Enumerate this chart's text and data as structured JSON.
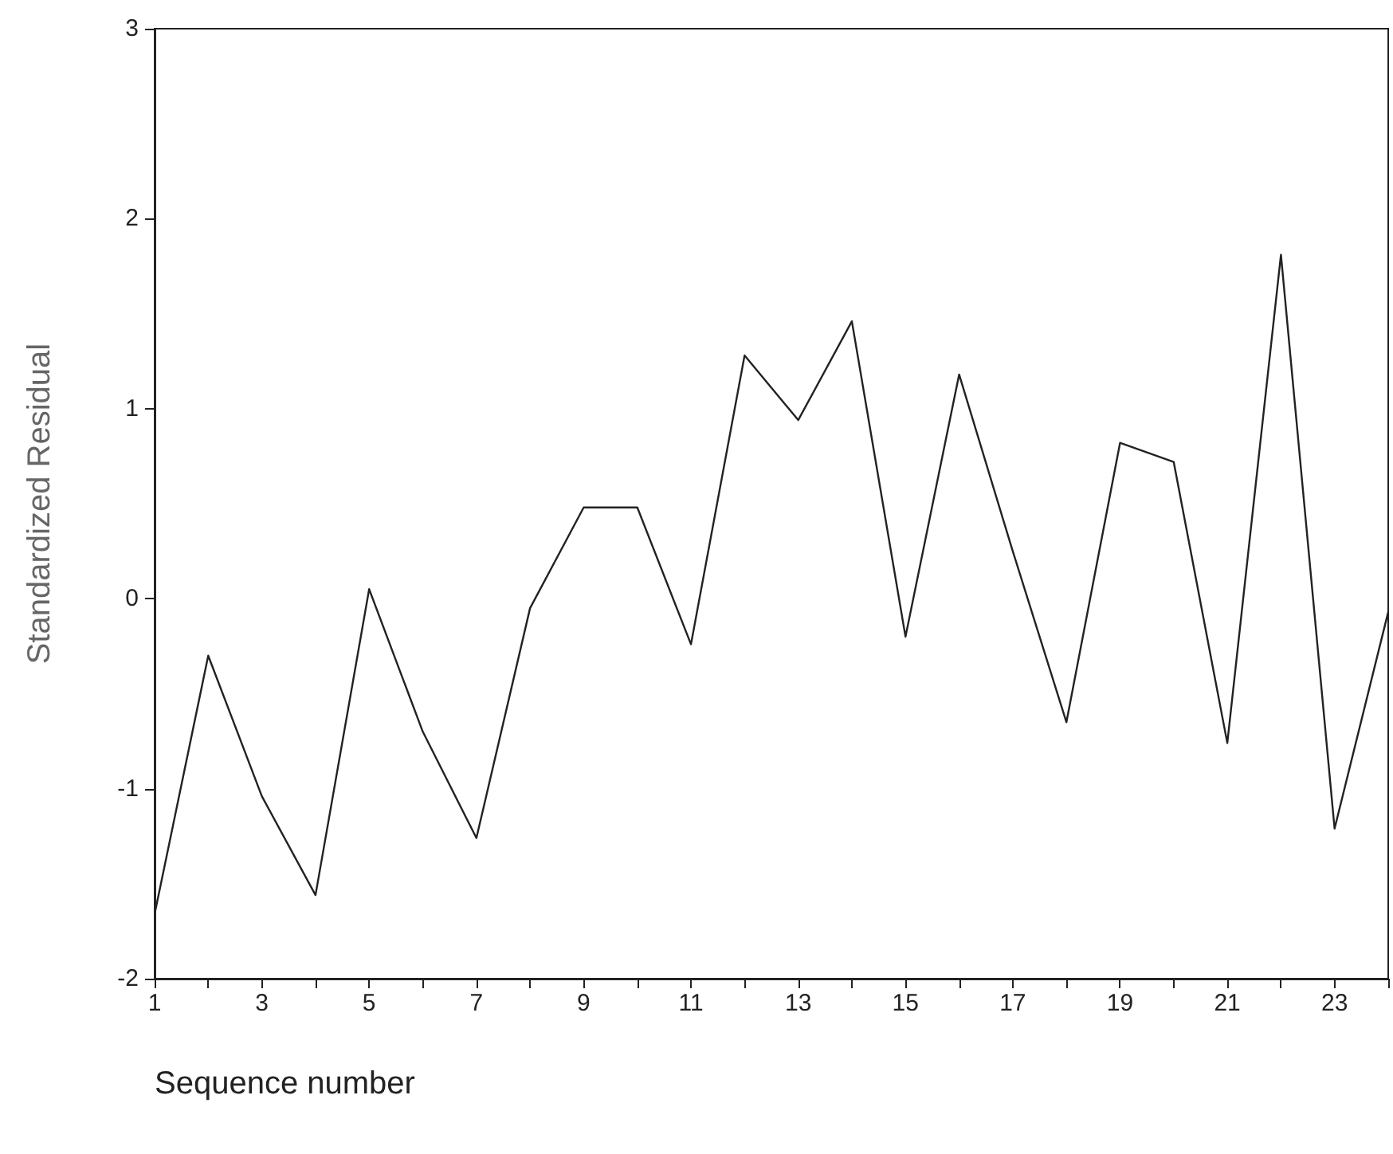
{
  "chart_data": {
    "type": "line",
    "xlabel": "Sequence number",
    "ylabel": "Standardized Residual",
    "x": [
      1,
      2,
      3,
      4,
      5,
      6,
      7,
      8,
      9,
      10,
      11,
      12,
      13,
      14,
      15,
      16,
      17,
      18,
      19,
      20,
      21,
      22,
      23,
      24
    ],
    "values": [
      -1.66,
      -0.3,
      -1.04,
      -1.56,
      0.05,
      -0.7,
      -1.26,
      -0.05,
      0.48,
      0.48,
      -0.24,
      1.28,
      0.94,
      1.46,
      -0.2,
      1.18,
      0.25,
      -0.65,
      0.82,
      0.72,
      -0.76,
      1.81,
      -1.21,
      -0.07
    ],
    "color": "#222222",
    "marker": "none",
    "line_style": "solid",
    "grid": false,
    "xlim": [
      1,
      24
    ],
    "xticks": [
      1,
      {
        "value": 2,
        "label": null
      },
      3,
      {
        "value": 4,
        "label": null
      },
      5,
      {
        "value": 6,
        "label": null
      },
      7,
      {
        "value": 8,
        "label": null
      },
      9,
      {
        "value": 10,
        "label": null
      },
      11,
      {
        "value": 12,
        "label": null
      },
      13,
      {
        "value": 14,
        "label": null
      },
      15,
      {
        "value": 16,
        "label": null
      },
      17,
      {
        "value": 18,
        "label": null
      },
      19,
      {
        "value": 20,
        "label": null
      },
      21,
      {
        "value": 22,
        "label": null
      },
      23,
      {
        "value": 24,
        "label": null
      }
    ],
    "ylim": [
      -2,
      3
    ],
    "yticks": [
      -2,
      -1,
      0,
      1,
      2,
      3
    ]
  }
}
